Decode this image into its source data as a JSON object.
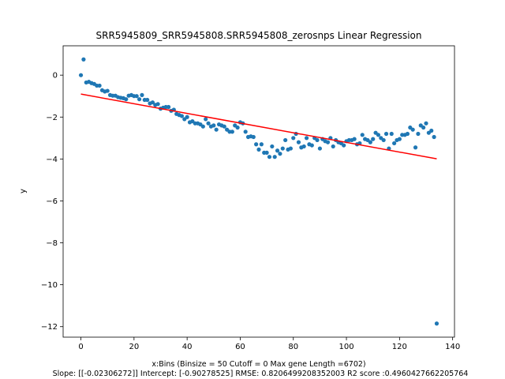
{
  "chart_data": {
    "type": "scatter",
    "title": "SRR5945809_SRR5945808.SRR5945808_zerosnps Linear Regression",
    "xlabel": "x:Bins  (Binsize = 50 Cutoff = 0 Max gene Length =6702)",
    "ylabel": "y",
    "footer": "Slope: [[-0.02306272]] Intercept: [-0.90278525] RMSE: 0.8206499208352003 R2 score :0.4960427662205764",
    "xlim": [
      -6.7,
      140.7
    ],
    "ylim": [
      -12.5,
      1.4
    ],
    "xticks": [
      0,
      20,
      40,
      60,
      80,
      100,
      120,
      140
    ],
    "yticks": [
      0,
      -2,
      -4,
      -6,
      -8,
      -10,
      -12
    ],
    "xtick_labels": [
      "0",
      "20",
      "40",
      "60",
      "80",
      "100",
      "120",
      "140"
    ],
    "ytick_labels": [
      "0",
      "−2",
      "−4",
      "−6",
      "−8",
      "−10",
      "−12"
    ],
    "grid": false,
    "point_color": "#1f77b4",
    "line_color": "#ff0000",
    "regression_line": {
      "slope": -0.02306272,
      "intercept": -0.90278525,
      "x_start": 0,
      "x_end": 134
    },
    "points": [
      [
        0,
        0.0
      ],
      [
        1,
        0.75
      ],
      [
        2,
        -0.35
      ],
      [
        3,
        -0.32
      ],
      [
        4,
        -0.38
      ],
      [
        5,
        -0.42
      ],
      [
        6,
        -0.5
      ],
      [
        7,
        -0.5
      ],
      [
        8,
        -0.72
      ],
      [
        9,
        -0.78
      ],
      [
        10,
        -0.75
      ],
      [
        11,
        -0.95
      ],
      [
        12,
        -0.98
      ],
      [
        13,
        -0.98
      ],
      [
        14,
        -1.05
      ],
      [
        15,
        -1.08
      ],
      [
        16,
        -1.1
      ],
      [
        17,
        -1.15
      ],
      [
        18,
        -0.98
      ],
      [
        19,
        -0.95
      ],
      [
        20,
        -1.0
      ],
      [
        21,
        -1.0
      ],
      [
        22,
        -1.15
      ],
      [
        23,
        -0.95
      ],
      [
        24,
        -1.18
      ],
      [
        25,
        -1.18
      ],
      [
        26,
        -1.35
      ],
      [
        27,
        -1.3
      ],
      [
        28,
        -1.42
      ],
      [
        29,
        -1.38
      ],
      [
        30,
        -1.6
      ],
      [
        31,
        -1.55
      ],
      [
        32,
        -1.52
      ],
      [
        33,
        -1.52
      ],
      [
        34,
        -1.7
      ],
      [
        35,
        -1.65
      ],
      [
        36,
        -1.85
      ],
      [
        37,
        -1.9
      ],
      [
        38,
        -1.95
      ],
      [
        39,
        -2.1
      ],
      [
        40,
        -2.0
      ],
      [
        41,
        -2.25
      ],
      [
        42,
        -2.2
      ],
      [
        43,
        -2.3
      ],
      [
        44,
        -2.3
      ],
      [
        45,
        -2.35
      ],
      [
        46,
        -2.45
      ],
      [
        47,
        -2.1
      ],
      [
        48,
        -2.3
      ],
      [
        49,
        -2.45
      ],
      [
        50,
        -2.4
      ],
      [
        51,
        -2.6
      ],
      [
        52,
        -2.35
      ],
      [
        53,
        -2.4
      ],
      [
        54,
        -2.45
      ],
      [
        55,
        -2.6
      ],
      [
        56,
        -2.7
      ],
      [
        57,
        -2.7
      ],
      [
        58,
        -2.4
      ],
      [
        59,
        -2.5
      ],
      [
        60,
        -2.25
      ],
      [
        61,
        -2.3
      ],
      [
        62,
        -2.7
      ],
      [
        63,
        -2.95
      ],
      [
        64,
        -2.92
      ],
      [
        65,
        -2.95
      ],
      [
        66,
        -3.3
      ],
      [
        67,
        -3.55
      ],
      [
        68,
        -3.3
      ],
      [
        69,
        -3.7
      ],
      [
        70,
        -3.7
      ],
      [
        71,
        -3.9
      ],
      [
        72,
        -3.4
      ],
      [
        73,
        -3.9
      ],
      [
        74,
        -3.6
      ],
      [
        75,
        -3.75
      ],
      [
        76,
        -3.5
      ],
      [
        77,
        -3.1
      ],
      [
        78,
        -3.55
      ],
      [
        79,
        -3.5
      ],
      [
        80,
        -3.0
      ],
      [
        81,
        -2.8
      ],
      [
        82,
        -3.2
      ],
      [
        83,
        -3.45
      ],
      [
        84,
        -3.4
      ],
      [
        85,
        -3.0
      ],
      [
        86,
        -3.3
      ],
      [
        87,
        -3.35
      ],
      [
        88,
        -3.0
      ],
      [
        89,
        -3.1
      ],
      [
        90,
        -3.5
      ],
      [
        91,
        -3.05
      ],
      [
        92,
        -3.15
      ],
      [
        93,
        -3.2
      ],
      [
        94,
        -3.0
      ],
      [
        95,
        -3.4
      ],
      [
        96,
        -3.1
      ],
      [
        97,
        -3.2
      ],
      [
        98,
        -3.25
      ],
      [
        99,
        -3.35
      ],
      [
        100,
        -3.15
      ],
      [
        101,
        -3.1
      ],
      [
        102,
        -3.1
      ],
      [
        103,
        -3.05
      ],
      [
        104,
        -3.3
      ],
      [
        105,
        -3.25
      ],
      [
        106,
        -2.85
      ],
      [
        107,
        -3.05
      ],
      [
        108,
        -3.1
      ],
      [
        109,
        -3.2
      ],
      [
        110,
        -3.05
      ],
      [
        111,
        -2.75
      ],
      [
        112,
        -2.85
      ],
      [
        113,
        -3.0
      ],
      [
        114,
        -3.1
      ],
      [
        115,
        -2.8
      ],
      [
        116,
        -3.5
      ],
      [
        117,
        -2.8
      ],
      [
        118,
        -3.25
      ],
      [
        119,
        -3.1
      ],
      [
        120,
        -3.05
      ],
      [
        121,
        -2.85
      ],
      [
        122,
        -2.85
      ],
      [
        123,
        -2.8
      ],
      [
        124,
        -2.5
      ],
      [
        125,
        -2.6
      ],
      [
        126,
        -3.45
      ],
      [
        127,
        -2.8
      ],
      [
        128,
        -2.4
      ],
      [
        129,
        -2.5
      ],
      [
        130,
        -2.3
      ],
      [
        131,
        -2.75
      ],
      [
        132,
        -2.65
      ],
      [
        133,
        -2.95
      ],
      [
        134,
        -11.85
      ]
    ]
  }
}
